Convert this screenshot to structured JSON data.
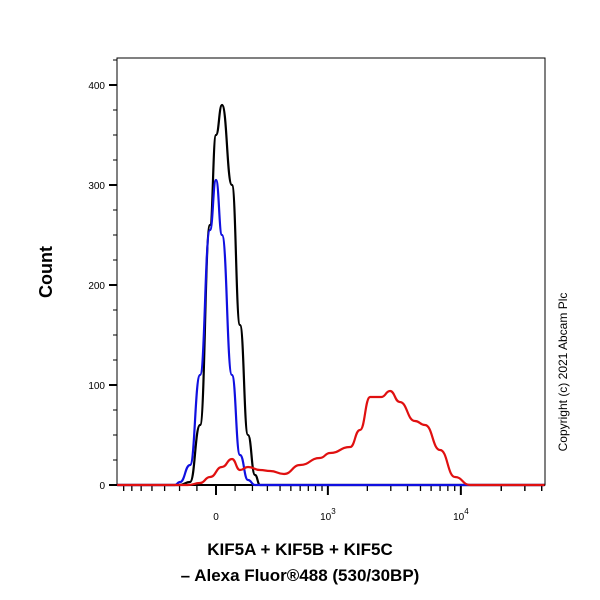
{
  "chart_data": {
    "type": "line",
    "title": "",
    "xlabel_line1": "KIF5A + KIF5B + KIF5C",
    "xlabel_line2": "– Alexa Fluor®488 (530/30BP)",
    "ylabel": "Count",
    "x_scale": "biexponential",
    "xlim": [
      -790,
      42000
    ],
    "ylim": [
      0,
      420
    ],
    "x_ticks": [
      {
        "value": 0,
        "label": "0"
      },
      {
        "value": 1000,
        "label": "10",
        "sup": "3"
      },
      {
        "value": 10000,
        "label": "10",
        "sup": "4"
      }
    ],
    "y_ticks": [
      0,
      100,
      200,
      300,
      400
    ],
    "grid": false,
    "series": [
      {
        "color": "#000000",
        "x": [
          -790,
          -200,
          -138,
          -83,
          -31,
          0,
          31,
          83,
          127,
          173,
          216,
          249,
          321,
          42000
        ],
        "y": [
          0,
          0,
          3,
          60,
          260,
          350,
          380,
          300,
          160,
          50,
          10,
          0,
          0,
          0
        ]
      },
      {
        "color": "#1010e0",
        "x": [
          -790,
          -230,
          -197,
          -138,
          -83,
          -31,
          0,
          31,
          83,
          127,
          173,
          216,
          42000
        ],
        "y": [
          0,
          0,
          3,
          20,
          110,
          255,
          305,
          250,
          110,
          30,
          5,
          0,
          0
        ]
      },
      {
        "color": "#e01010",
        "x": [
          -790,
          -150,
          -83,
          -31,
          31,
          83,
          127,
          173,
          249,
          321,
          435,
          600,
          865,
          1040,
          1480,
          1760,
          2100,
          2550,
          2960,
          3500,
          4540,
          5400,
          7000,
          9050,
          11700,
          42000
        ],
        "y": [
          0,
          0,
          2,
          8,
          18,
          26,
          15,
          18,
          15,
          14,
          11,
          20,
          27,
          32,
          38,
          55,
          88,
          88,
          94,
          83,
          64,
          60,
          35,
          8,
          0,
          0
        ]
      }
    ]
  },
  "copyright": "Copyright (c) 2021 Abcam Plc"
}
